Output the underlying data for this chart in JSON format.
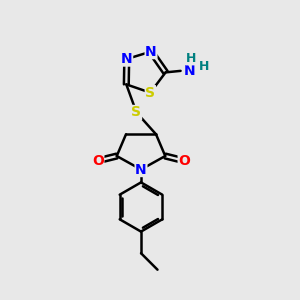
{
  "background_color": "#e8e8e8",
  "bond_color": "black",
  "bond_width": 1.8,
  "atom_colors": {
    "N": "#0000ff",
    "S": "#cccc00",
    "O": "#ff0000",
    "H": "#008080",
    "C": "black"
  },
  "font_size": 10,
  "fig_width": 3.0,
  "fig_height": 3.0,
  "dpi": 100
}
